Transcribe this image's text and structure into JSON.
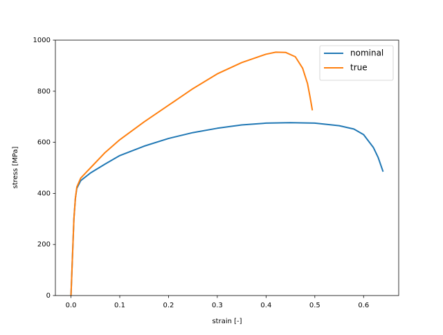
{
  "chart_data": {
    "type": "line",
    "xlabel": "strain [-]",
    "ylabel": "stress [MPa]",
    "series": [
      {
        "name": "nominal",
        "color": "#1f77b4",
        "x": [
          0,
          0.003,
          0.006,
          0.009,
          0.012,
          0.02,
          0.04,
          0.07,
          0.1,
          0.15,
          0.2,
          0.25,
          0.3,
          0.35,
          0.4,
          0.45,
          0.5,
          0.55,
          0.58,
          0.6,
          0.62,
          0.63,
          0.64
        ],
        "values": [
          0,
          150,
          300,
          380,
          420,
          450,
          480,
          515,
          548,
          585,
          615,
          638,
          655,
          668,
          675,
          677,
          675,
          665,
          652,
          630,
          580,
          540,
          485
        ]
      },
      {
        "name": "true",
        "color": "#ff7f0e",
        "x": [
          0,
          0.003,
          0.006,
          0.009,
          0.012,
          0.02,
          0.04,
          0.07,
          0.1,
          0.15,
          0.2,
          0.25,
          0.3,
          0.35,
          0.4,
          0.42,
          0.44,
          0.46,
          0.475,
          0.485,
          0.49,
          0.495
        ],
        "values": [
          0,
          150,
          300,
          380,
          425,
          460,
          500,
          560,
          610,
          680,
          745,
          810,
          868,
          912,
          945,
          953,
          952,
          935,
          890,
          830,
          780,
          725
        ]
      }
    ],
    "xlim": [
      -0.032,
      0.672
    ],
    "ylim": [
      0,
      1000
    ],
    "xticks": [
      {
        "value": 0,
        "label": "0.0"
      },
      0.1,
      0.2,
      0.3,
      0.4,
      0.5,
      0.6
    ],
    "yticks": [
      0,
      200,
      400,
      600,
      800,
      1000
    ],
    "legend": "upper right",
    "grid": false
  }
}
